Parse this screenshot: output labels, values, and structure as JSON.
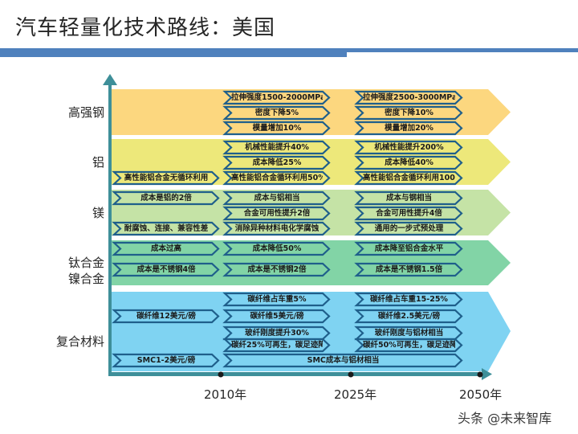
{
  "title": "汽车轻量化技术路线：美国",
  "colors": {
    "accent": "#4f81bd",
    "axis": "#3e8f99",
    "chevron_stroke": "#1f5f8b",
    "bands": [
      "#fcd77f",
      "#ede87a",
      "#c5e3a6",
      "#82d4a6",
      "#7fd3f2"
    ]
  },
  "timeline": {
    "years": [
      "2010年",
      "2025年",
      "2050年"
    ]
  },
  "rows": [
    {
      "label": "高强钢",
      "items": [
        {
          "col": 2,
          "slot": 0,
          "text": "拉伸强度1500-2000MPa"
        },
        {
          "col": 2,
          "slot": 1,
          "text": "密度下降5%"
        },
        {
          "col": 2,
          "slot": 2,
          "text": "模量增加10%"
        },
        {
          "col": 3,
          "slot": 0,
          "text": "拉伸强度2500-3000MPa"
        },
        {
          "col": 3,
          "slot": 1,
          "text": "密度下降10%"
        },
        {
          "col": 3,
          "slot": 2,
          "text": "模量增加20%"
        }
      ]
    },
    {
      "label": "铝",
      "items": [
        {
          "col": 1,
          "slot": 2,
          "text": "高性能铝合金无循环利用"
        },
        {
          "col": 2,
          "slot": 0,
          "text": "机械性能提升40%"
        },
        {
          "col": 2,
          "slot": 1,
          "text": "成本降低25%"
        },
        {
          "col": 2,
          "slot": 2,
          "text": "高性能铝合金循环利用50%"
        },
        {
          "col": 3,
          "slot": 0,
          "text": "机械性能提升200%"
        },
        {
          "col": 3,
          "slot": 1,
          "text": "成本降低40%"
        },
        {
          "col": 3,
          "slot": 2,
          "text": "高性能铝合金循环利用100%"
        }
      ]
    },
    {
      "label": "镁",
      "items": [
        {
          "col": 1,
          "slot": 0,
          "text": "成本是铝的2倍"
        },
        {
          "col": 1,
          "slot": 2,
          "text": "耐腐蚀、连接、兼容性差"
        },
        {
          "col": 2,
          "slot": 0,
          "text": "成本与铝相当"
        },
        {
          "col": 2,
          "slot": 1,
          "text": "合金可用性提升2倍"
        },
        {
          "col": 2,
          "slot": 2,
          "text": "消除异种材料电化学腐蚀"
        },
        {
          "col": 3,
          "slot": 0,
          "text": "成本与钢相当"
        },
        {
          "col": 3,
          "slot": 1,
          "text": "合金可用性提升4倍"
        },
        {
          "col": 3,
          "slot": 2,
          "text": "通用的一步式预处理"
        }
      ]
    },
    {
      "label": "钛合金\n镍合金",
      "label_lines": [
        "钛合金",
        "镍合金"
      ],
      "items": [
        {
          "col": 1,
          "slot": 0,
          "text": "成本过高"
        },
        {
          "col": 1,
          "slot": 1,
          "text": "成本是不锈钢4倍"
        },
        {
          "col": 2,
          "slot": 0,
          "text": "成本降低50%"
        },
        {
          "col": 2,
          "slot": 1,
          "text": "成本是不锈钢2倍"
        },
        {
          "col": 3,
          "slot": 0,
          "text": "成本降至铝合金水平"
        },
        {
          "col": 3,
          "slot": 1,
          "text": "成本是不锈钢1.5倍"
        }
      ]
    },
    {
      "label": "复合材料",
      "items": [
        {
          "col": 1,
          "slot": 1,
          "text": "碳纤维12美元/磅"
        },
        {
          "col": 1,
          "slot": 4,
          "text": "SMC1-2美元/磅"
        },
        {
          "col": 2,
          "slot": 0,
          "text": "碳纤维占车重5%"
        },
        {
          "col": 2,
          "slot": 1,
          "text": "碳纤维5美元/磅"
        },
        {
          "col": 2,
          "slot": 2,
          "text": "玻纤刚度提升30%"
        },
        {
          "col": 2,
          "slot": 3,
          "text": "碳纤25%可再生，碳足迹降25%"
        },
        {
          "col": 3,
          "slot": 0,
          "text": "碳纤维占车重15-25%"
        },
        {
          "col": 3,
          "slot": 1,
          "text": "碳纤维2.5美元/磅"
        },
        {
          "col": 3,
          "slot": 2,
          "text": "玻纤刚度与铝材相当"
        },
        {
          "col": 3,
          "slot": 3,
          "text": "碳纤50%可再生，碳足迹降75%"
        },
        {
          "col": 23,
          "slot": 4,
          "text": "SMC成本与铝材相当"
        }
      ]
    }
  ],
  "watermark": "头条 @未来智库"
}
